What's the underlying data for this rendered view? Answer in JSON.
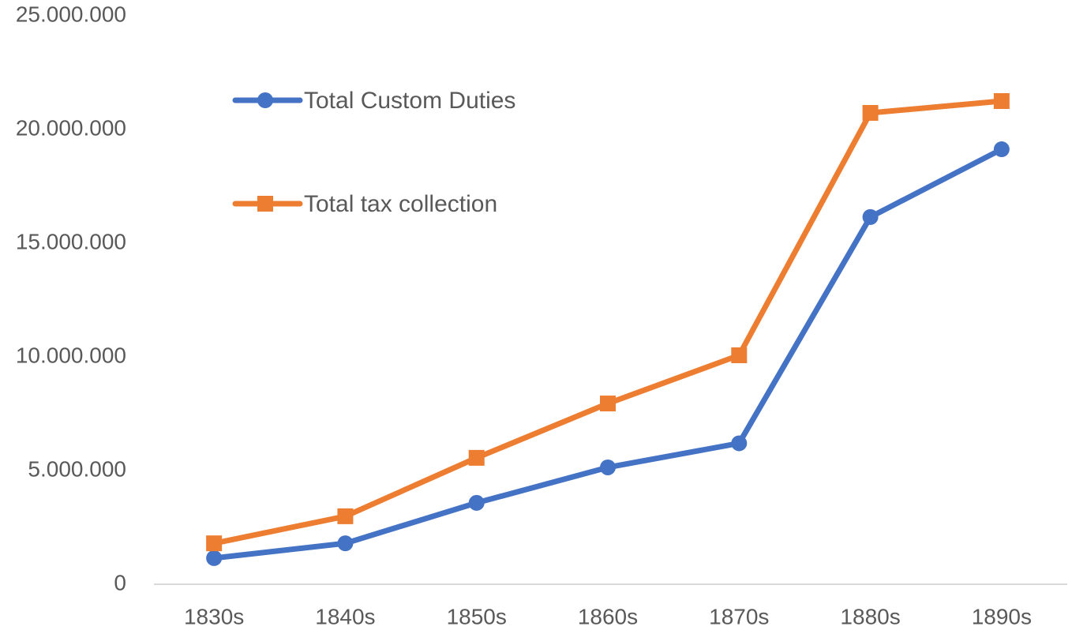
{
  "chart_data": {
    "type": "line",
    "categories": [
      "1830s",
      "1840s",
      "1850s",
      "1860s",
      "1870s",
      "1880s",
      "1890s"
    ],
    "series": [
      {
        "name": "Total Custom Duties",
        "color": "#4472c4",
        "marker": "circle",
        "values": [
          1150000,
          1800000,
          3580000,
          5140000,
          6200000,
          16150000,
          19130000
        ]
      },
      {
        "name": "Total tax collection",
        "color": "#ed7d31",
        "marker": "square",
        "values": [
          1800000,
          2990000,
          5560000,
          7950000,
          10070000,
          20730000,
          21250000
        ]
      }
    ],
    "ylim": [
      0,
      25000000
    ],
    "yticks": [
      0,
      {
        "value": 5000000,
        "label": "5.000.000"
      },
      {
        "value": 10000000,
        "label": "10.000.000"
      },
      {
        "value": 15000000,
        "label": "15.000.000"
      },
      {
        "value": 20000000,
        "label": "20.000.000"
      },
      {
        "value": 25000000,
        "label": "25.000.000"
      }
    ],
    "grid": false,
    "legend": "top-left"
  }
}
